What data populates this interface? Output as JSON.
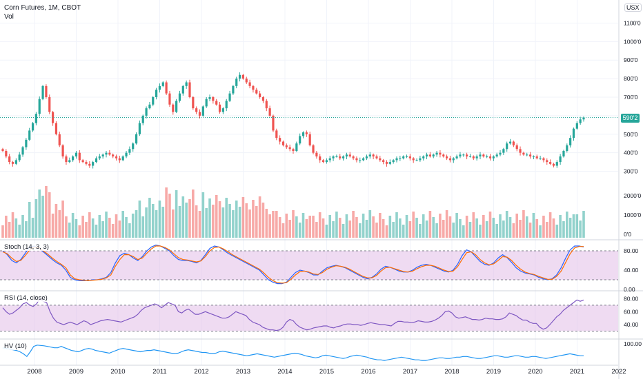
{
  "header": {
    "symbol_line": "Corn Futures, 1M, CBOT",
    "volume_label": "Vol"
  },
  "currency_badge": "USX",
  "last_price_tag": "590'2",
  "colors": {
    "up": "#26a69a",
    "down": "#ef5350",
    "stoch_k": "#2962ff",
    "stoch_d": "#ff6d00",
    "rsi": "#7e57c2",
    "hv": "#2196f3",
    "band": "#e1bee7"
  },
  "chart_data": [
    {
      "type": "candlestick",
      "title": "Corn Futures, 1M, CBOT",
      "x_axis": {
        "labels": [
          "2008",
          "2009",
          "2010",
          "2011",
          "2012",
          "2013",
          "2014",
          "2015",
          "2016",
          "2017",
          "2018",
          "2019",
          "2020",
          "2021",
          "2022"
        ]
      },
      "y_axis": {
        "ticks": [
          "300'0",
          "400'0",
          "500'0",
          "600'0",
          "700'0",
          "800'0",
          "900'0",
          "1000'0",
          "1100'0"
        ],
        "range": [
          250,
          1150
        ]
      },
      "last_price": 590.25,
      "closes": [
        410,
        380,
        350,
        340,
        360,
        390,
        430,
        470,
        520,
        560,
        610,
        690,
        760,
        700,
        620,
        560,
        500,
        440,
        380,
        350,
        360,
        380,
        400,
        360,
        350,
        340,
        330,
        350,
        370,
        380,
        390,
        400,
        390,
        380,
        370,
        360,
        380,
        400,
        420,
        450,
        500,
        560,
        600,
        640,
        660,
        700,
        740,
        760,
        780,
        720,
        660,
        620,
        680,
        720,
        760,
        780,
        700,
        640,
        620,
        600,
        650,
        690,
        700,
        680,
        660,
        620,
        640,
        680,
        720,
        760,
        800,
        820,
        800,
        780,
        760,
        740,
        720,
        700,
        680,
        640,
        600,
        520,
        480,
        460,
        440,
        430,
        420,
        410,
        450,
        490,
        510,
        500,
        440,
        400,
        380,
        360,
        350,
        360,
        370,
        380,
        380,
        370,
        380,
        390,
        380,
        370,
        360,
        360,
        370,
        380,
        390,
        380,
        370,
        360,
        350,
        340,
        350,
        360,
        370,
        370,
        380,
        380,
        370,
        360,
        360,
        370,
        380,
        390,
        380,
        390,
        400,
        390,
        380,
        370,
        360,
        370,
        380,
        390,
        390,
        380,
        380,
        370,
        380,
        390,
        380,
        380,
        370,
        380,
        390,
        400,
        420,
        450,
        460,
        440,
        420,
        400,
        390,
        390,
        380,
        380,
        370,
        370,
        360,
        350,
        340,
        330,
        350,
        380,
        410,
        440,
        480,
        530,
        560,
        580,
        590
      ],
      "volume_label_ticks": [
        "0'0",
        "1000'0",
        "2000'0"
      ]
    },
    {
      "type": "line",
      "title": "Stoch (14, 3, 3)",
      "y_axis": {
        "ticks": [
          "0.00",
          "40.00",
          "80.00"
        ],
        "range": [
          0,
          100
        ],
        "bands": [
          20,
          80
        ]
      },
      "series": [
        {
          "values": [
            80,
            72,
            60,
            55,
            62,
            75,
            88,
            90,
            85,
            78,
            70,
            62,
            55,
            50,
            40,
            25,
            20,
            18,
            18,
            18,
            20,
            20,
            22,
            25,
            35,
            55,
            70,
            75,
            72,
            65,
            60,
            68,
            80,
            88,
            92,
            90,
            85,
            80,
            70,
            62,
            60,
            60,
            58,
            55,
            60,
            72,
            85,
            90,
            88,
            82,
            75,
            70,
            65,
            60,
            55,
            50,
            45,
            40,
            30,
            20,
            15,
            12,
            12,
            15,
            25,
            35,
            40,
            38,
            35,
            30,
            30,
            38,
            45,
            48,
            50,
            48,
            45,
            40,
            35,
            30,
            25,
            22,
            25,
            32,
            42,
            48,
            46,
            42,
            38,
            36,
            36,
            40,
            46,
            50,
            52,
            50,
            46,
            42,
            38,
            36,
            40,
            52,
            70,
            82,
            78,
            68,
            58,
            52,
            50,
            55,
            65,
            72,
            66,
            56,
            45,
            38,
            34,
            32,
            30,
            25,
            22,
            20,
            22,
            30,
            45,
            65,
            82,
            90,
            90,
            88
          ]
        },
        {
          "values": [
            78,
            74,
            65,
            58,
            60,
            70,
            82,
            88,
            86,
            80,
            73,
            65,
            58,
            52,
            45,
            30,
            22,
            20,
            19,
            18,
            19,
            20,
            21,
            24,
            30,
            48,
            62,
            72,
            72,
            68,
            62,
            65,
            75,
            84,
            90,
            90,
            87,
            82,
            74,
            66,
            62,
            61,
            59,
            57,
            59,
            68,
            80,
            87,
            88,
            84,
            78,
            72,
            67,
            62,
            57,
            52,
            47,
            42,
            34,
            25,
            18,
            14,
            13,
            14,
            21,
            30,
            37,
            38,
            36,
            32,
            31,
            35,
            42,
            46,
            49,
            48,
            46,
            42,
            37,
            32,
            27,
            24,
            24,
            29,
            38,
            45,
            46,
            43,
            40,
            37,
            36,
            38,
            43,
            47,
            50,
            50,
            48,
            44,
            40,
            37,
            38,
            47,
            62,
            76,
            78,
            72,
            62,
            55,
            51,
            53,
            60,
            68,
            67,
            60,
            50,
            42,
            36,
            33,
            31,
            27,
            24,
            21,
            21,
            27,
            38,
            56,
            74,
            86,
            89,
            89
          ]
        }
      ]
    },
    {
      "type": "line",
      "title": "RSI (14, close)",
      "y_axis": {
        "ticks": [
          "40.00",
          "60.00",
          "80.00"
        ],
        "range": [
          20,
          90
        ],
        "bands": [
          30,
          70
        ]
      },
      "series": [
        {
          "values": [
            66,
            60,
            56,
            58,
            62,
            66,
            72,
            74,
            70,
            68,
            72,
            80,
            76,
            74,
            60,
            50,
            44,
            42,
            40,
            42,
            44,
            42,
            40,
            43,
            46,
            44,
            40,
            42,
            44,
            46,
            47,
            48,
            47,
            46,
            45,
            44,
            46,
            48,
            50,
            52,
            56,
            62,
            66,
            68,
            70,
            72,
            70,
            66,
            70,
            74,
            72,
            70,
            60,
            58,
            62,
            64,
            60,
            56,
            56,
            58,
            60,
            58,
            56,
            54,
            52,
            50,
            50,
            52,
            56,
            60,
            58,
            56,
            54,
            48,
            44,
            42,
            40,
            36,
            34,
            32,
            32,
            31,
            32,
            36,
            44,
            48,
            46,
            40,
            36,
            34,
            32,
            33,
            35,
            36,
            37,
            38,
            38,
            36,
            35,
            37,
            38,
            40,
            41,
            41,
            40,
            40,
            39,
            40,
            42,
            43,
            42,
            41,
            40,
            40,
            39,
            38,
            42,
            45,
            45,
            44,
            44,
            43,
            44,
            46,
            45,
            44,
            44,
            45,
            47,
            50,
            54,
            60,
            61,
            58,
            52,
            50,
            51,
            52,
            50,
            48,
            48,
            47,
            48,
            50,
            49,
            49,
            48,
            48,
            49,
            52,
            58,
            56,
            54,
            50,
            47,
            47,
            44,
            42,
            42,
            36,
            33,
            35,
            40,
            46,
            52,
            56,
            62,
            66,
            70,
            74,
            78,
            76,
            78
          ]
        }
      ]
    },
    {
      "type": "line",
      "title": "HV (10)",
      "y_axis": {
        "ticks": [
          "100.00"
        ]
      },
      "series": [
        {
          "values": [
            88,
            86,
            84,
            82,
            80,
            76,
            70,
            62,
            76,
            92,
            96,
            95,
            94,
            92,
            90,
            88,
            88,
            92,
            88,
            84,
            80,
            78,
            76,
            80,
            84,
            86,
            84,
            80,
            78,
            76,
            74,
            72,
            76,
            80,
            84,
            86,
            84,
            82,
            80,
            78,
            76,
            78,
            80,
            80,
            82,
            80,
            78,
            76,
            74,
            72,
            70,
            72,
            76,
            80,
            82,
            80,
            78,
            76,
            74,
            74,
            72,
            70,
            72,
            76,
            78,
            76,
            74,
            72,
            70,
            68,
            66,
            64,
            66,
            68,
            70,
            68,
            66,
            64,
            62,
            60,
            62,
            64,
            66,
            68,
            70,
            72,
            70,
            68,
            64,
            62,
            60,
            58,
            60,
            64,
            66,
            64,
            62,
            60,
            58,
            56,
            58,
            62,
            64,
            66,
            64,
            62,
            60,
            56,
            54,
            52,
            52,
            50,
            52,
            54,
            56,
            58,
            60,
            58,
            56,
            54,
            52,
            52,
            50,
            50,
            52,
            54,
            56,
            58,
            58,
            56,
            56,
            58,
            60,
            60,
            62,
            62,
            60,
            58,
            56,
            56,
            58,
            60,
            62,
            64,
            64,
            62,
            60,
            60,
            62,
            64,
            64,
            62,
            60,
            60,
            62,
            62,
            60,
            58,
            56,
            58,
            60,
            62,
            64,
            66,
            68,
            70,
            68,
            66,
            64,
            64
          ]
        }
      ]
    }
  ]
}
